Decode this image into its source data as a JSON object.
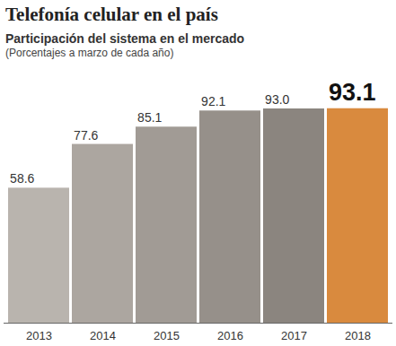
{
  "chart_data": {
    "type": "bar",
    "title": "Telefonía celular en el país",
    "subtitle": [
      "Participación del sistema en el mercado",
      "(Porcentajes a marzo de cada año)"
    ],
    "categories": [
      "2013",
      "2014",
      "2015",
      "2016",
      "2017",
      "2018"
    ],
    "values": [
      58.6,
      77.6,
      85.1,
      92.1,
      93.0,
      93.1
    ],
    "value_labels": [
      "58.6",
      "77.6",
      "85.1",
      "92.1",
      "93.0",
      "93.1"
    ],
    "colors": [
      "#b9b4ae",
      "#aca6a0",
      "#a19b95",
      "#96908a",
      "#8b857f",
      "#d98a3e"
    ],
    "ylim": [
      0,
      100
    ],
    "data_labels": true,
    "tick_labels": "x"
  }
}
